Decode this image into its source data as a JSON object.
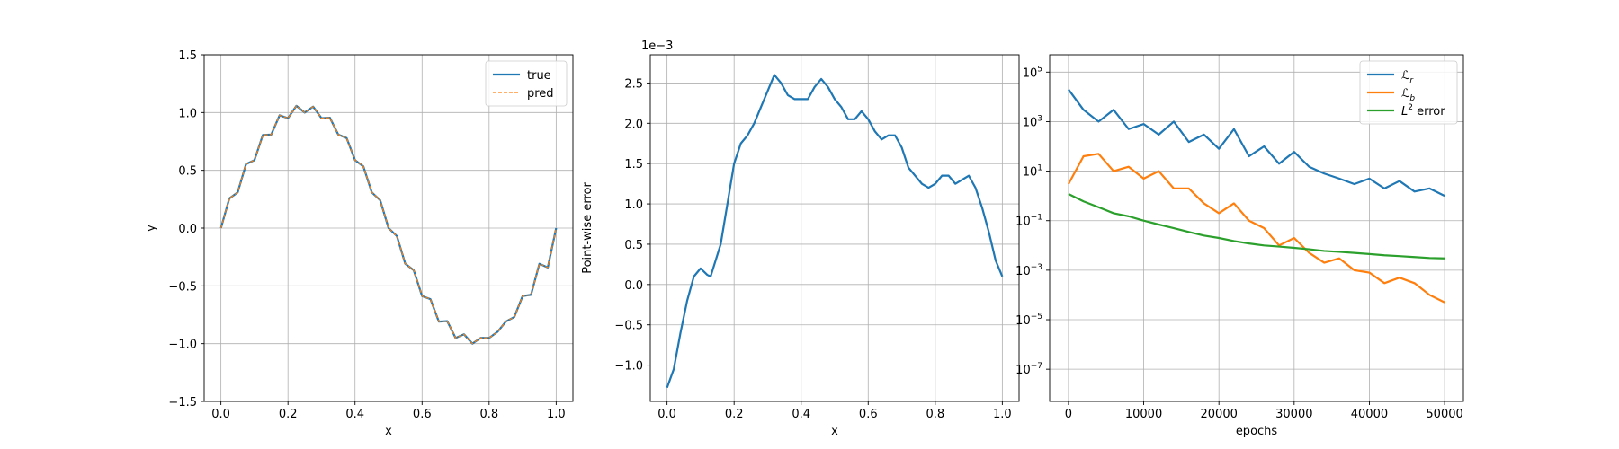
{
  "chart_data": [
    {
      "type": "line",
      "title": "",
      "xlabel": "x",
      "ylabel": "y",
      "xlim": [
        -0.05,
        1.05
      ],
      "ylim": [
        -1.5,
        1.5
      ],
      "xticks": [
        0.0,
        0.2,
        0.4,
        0.6,
        0.8,
        1.0
      ],
      "xtick_labels": [
        "0.0",
        "0.2",
        "0.4",
        "0.6",
        "0.8",
        "1.0"
      ],
      "yticks": [
        -1.5,
        -1.0,
        -0.5,
        0.0,
        0.5,
        1.0,
        1.5
      ],
      "ytick_labels": [
        "−1.5",
        "−1.0",
        "−0.5",
        "0.0",
        "0.5",
        "1.0",
        "1.5"
      ],
      "grid": true,
      "legend": "top-right",
      "x": [
        0.0,
        0.025,
        0.05,
        0.075,
        0.1,
        0.125,
        0.15,
        0.175,
        0.2,
        0.225,
        0.25,
        0.275,
        0.3,
        0.325,
        0.35,
        0.375,
        0.4,
        0.425,
        0.45,
        0.475,
        0.5,
        0.525,
        0.55,
        0.575,
        0.6,
        0.625,
        0.65,
        0.675,
        0.7,
        0.725,
        0.75,
        0.775,
        0.8,
        0.825,
        0.85,
        0.875,
        0.9,
        0.925,
        0.95,
        0.975,
        1.0
      ],
      "series": [
        {
          "name": "true",
          "color": "#1f77b4",
          "style": "solid",
          "values": [
            0.0,
            0.256,
            0.309,
            0.554,
            0.588,
            0.806,
            0.809,
            0.976,
            0.951,
            1.058,
            1.0,
            1.051,
            0.951,
            0.955,
            0.809,
            0.779,
            0.588,
            0.533,
            0.309,
            0.241,
            0.0,
            -0.07,
            -0.309,
            -0.364,
            -0.588,
            -0.615,
            -0.809,
            -0.805,
            -0.951,
            -0.919,
            -1.0,
            -0.95,
            -0.951,
            -0.898,
            -0.809,
            -0.77,
            -0.588,
            -0.577,
            -0.309,
            -0.341,
            0.0
          ]
        },
        {
          "name": "pred",
          "color": "#ff7f0e",
          "style": "dashed",
          "values": [
            0.0,
            0.256,
            0.309,
            0.554,
            0.588,
            0.806,
            0.809,
            0.976,
            0.951,
            1.058,
            1.0,
            1.051,
            0.951,
            0.955,
            0.809,
            0.779,
            0.588,
            0.533,
            0.309,
            0.241,
            0.0,
            -0.07,
            -0.309,
            -0.364,
            -0.588,
            -0.615,
            -0.809,
            -0.805,
            -0.951,
            -0.919,
            -1.0,
            -0.95,
            -0.951,
            -0.898,
            -0.809,
            -0.77,
            -0.588,
            -0.577,
            -0.309,
            -0.341,
            0.0
          ]
        }
      ]
    },
    {
      "type": "line",
      "title": "",
      "xlabel": "x",
      "ylabel": "Point-wise error",
      "offset_text": "1e−3",
      "xlim": [
        -0.05,
        1.05
      ],
      "ylim": [
        -1.45,
        2.85
      ],
      "xticks": [
        0.0,
        0.2,
        0.4,
        0.6,
        0.8,
        1.0
      ],
      "xtick_labels": [
        "0.0",
        "0.2",
        "0.4",
        "0.6",
        "0.8",
        "1.0"
      ],
      "yticks": [
        -1.0,
        -0.5,
        0.0,
        0.5,
        1.0,
        1.5,
        2.0,
        2.5
      ],
      "ytick_labels": [
        "−1.0",
        "−0.5",
        "0.0",
        "0.5",
        "1.0",
        "1.5",
        "2.0",
        "2.5"
      ],
      "grid": true,
      "x": [
        0.0,
        0.02,
        0.04,
        0.06,
        0.08,
        0.1,
        0.12,
        0.13,
        0.16,
        0.18,
        0.2,
        0.22,
        0.24,
        0.26,
        0.28,
        0.3,
        0.32,
        0.34,
        0.36,
        0.38,
        0.4,
        0.42,
        0.44,
        0.46,
        0.48,
        0.5,
        0.52,
        0.54,
        0.56,
        0.58,
        0.6,
        0.62,
        0.64,
        0.66,
        0.68,
        0.7,
        0.72,
        0.74,
        0.76,
        0.78,
        0.8,
        0.82,
        0.84,
        0.86,
        0.88,
        0.9,
        0.92,
        0.94,
        0.96,
        0.98,
        1.0
      ],
      "series": [
        {
          "name": "",
          "color": "#1f77b4",
          "style": "solid",
          "values": [
            -1.28,
            -1.05,
            -0.6,
            -0.2,
            0.1,
            0.2,
            0.12,
            0.1,
            0.5,
            1.0,
            1.5,
            1.75,
            1.85,
            2.0,
            2.2,
            2.4,
            2.6,
            2.5,
            2.35,
            2.3,
            2.3,
            2.3,
            2.45,
            2.55,
            2.45,
            2.3,
            2.2,
            2.05,
            2.05,
            2.15,
            2.05,
            1.9,
            1.8,
            1.85,
            1.85,
            1.7,
            1.45,
            1.35,
            1.25,
            1.2,
            1.25,
            1.35,
            1.35,
            1.25,
            1.3,
            1.35,
            1.2,
            0.95,
            0.65,
            0.3,
            0.1
          ]
        }
      ]
    },
    {
      "type": "line",
      "title": "",
      "xlabel": "epochs",
      "ylabel": "",
      "yscale": "log",
      "xlim": [
        -2500,
        52500
      ],
      "ylim_log10": [
        -8.3,
        5.7
      ],
      "xticks": [
        0,
        10000,
        20000,
        30000,
        40000,
        50000
      ],
      "xtick_labels": [
        "0",
        "10000",
        "20000",
        "30000",
        "40000",
        "50000"
      ],
      "yticks_log10": [
        5,
        3,
        1,
        -1,
        -3,
        -5,
        -7
      ],
      "ytick_bases": [
        "10",
        "10",
        "10",
        "10",
        "10",
        "10",
        "10"
      ],
      "ytick_exponents": [
        "5",
        "3",
        "1",
        "−1",
        "−3",
        "−5",
        "−7"
      ],
      "grid": true,
      "legend": "top-right",
      "legend_labels": [
        {
          "main": "ℒ",
          "sub": "r",
          "sup": "",
          "rest": ""
        },
        {
          "main": "ℒ",
          "sub": "b",
          "sup": "",
          "rest": ""
        },
        {
          "main": "L",
          "sub": "",
          "sup": "2",
          "rest": " error"
        }
      ],
      "x": [
        0,
        2000,
        4000,
        6000,
        8000,
        10000,
        12000,
        14000,
        16000,
        18000,
        20000,
        22000,
        24000,
        26000,
        28000,
        30000,
        32000,
        34000,
        36000,
        38000,
        40000,
        42000,
        44000,
        46000,
        48000,
        50000
      ],
      "series": [
        {
          "name": "ℒr",
          "color": "#1f77b4",
          "style": "solid",
          "values": [
            20000,
            3000,
            1000,
            3000,
            500,
            800,
            300,
            1000,
            150,
            300,
            80,
            500,
            40,
            100,
            20,
            60,
            15,
            8,
            5,
            3,
            5,
            2,
            4,
            1.5,
            2,
            1
          ]
        },
        {
          "name": "ℒb",
          "color": "#ff7f0e",
          "style": "solid",
          "values": [
            3,
            40,
            50,
            10,
            15,
            5,
            10,
            2,
            2,
            0.5,
            0.2,
            0.5,
            0.1,
            0.05,
            0.01,
            0.02,
            0.005,
            0.002,
            0.003,
            0.001,
            0.0008,
            0.0003,
            0.0005,
            0.0003,
            0.0001,
            5e-05
          ]
        },
        {
          "name": "L2 error",
          "color": "#2ca02c",
          "style": "solid",
          "values": [
            1.2,
            0.6,
            0.35,
            0.2,
            0.15,
            0.1,
            0.07,
            0.05,
            0.035,
            0.025,
            0.02,
            0.015,
            0.012,
            0.01,
            0.009,
            0.008,
            0.007,
            0.006,
            0.0055,
            0.005,
            0.0045,
            0.004,
            0.0037,
            0.0034,
            0.0031,
            0.003
          ]
        }
      ]
    }
  ]
}
